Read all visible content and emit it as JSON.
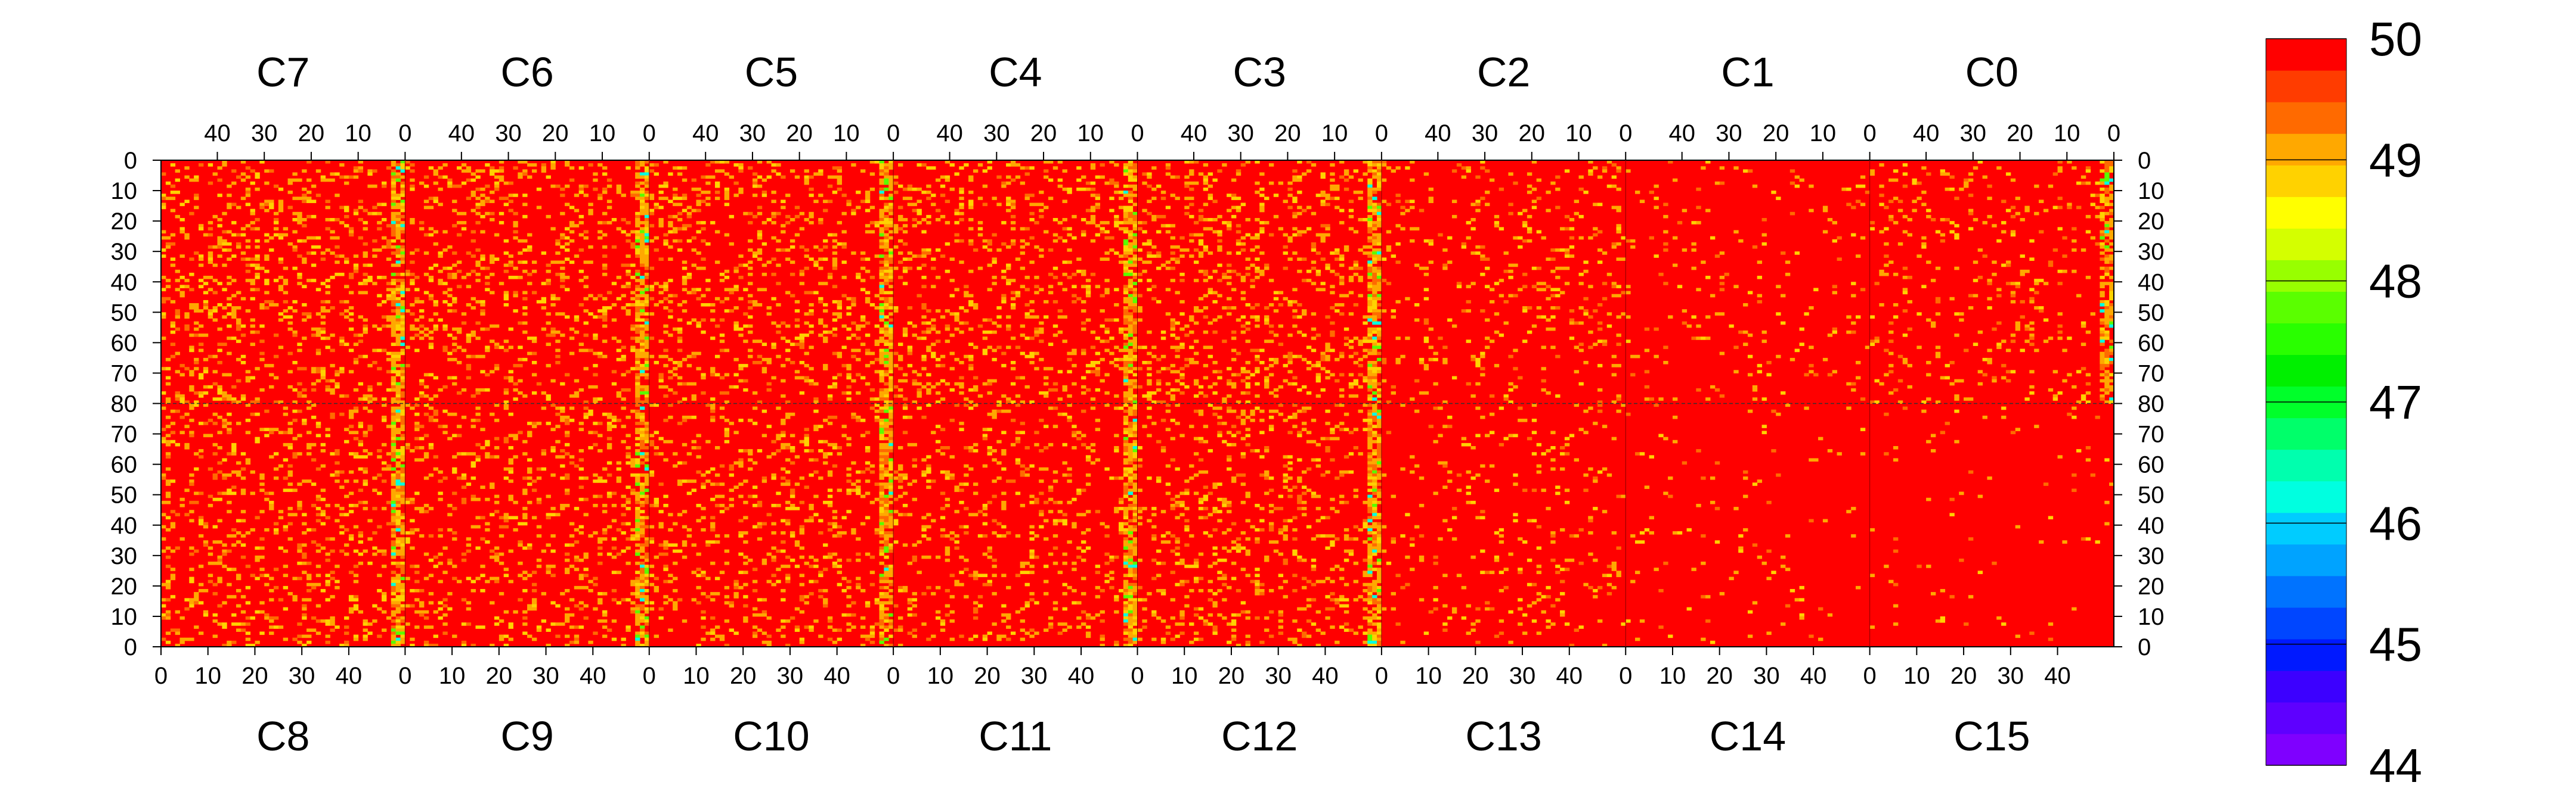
{
  "chart_data": {
    "type": "heatmap",
    "x_tick_labels": [
      "0",
      "10",
      "20",
      "30",
      "40"
    ],
    "y_tick_labels": [
      "0",
      "10",
      "20",
      "30",
      "40",
      "50",
      "60",
      "70",
      "80",
      "70",
      "60",
      "50",
      "40",
      "30",
      "20",
      "10",
      "0"
    ],
    "top_chips": [
      "C7",
      "C6",
      "C5",
      "C4",
      "C3",
      "C2",
      "C1",
      "C0"
    ],
    "bottom_chips": [
      "C8",
      "C9",
      "C10",
      "C11",
      "C12",
      "C13",
      "C14",
      "C15"
    ],
    "chip_columns": 52,
    "chip_rows": 80,
    "zlim": [
      44,
      50
    ],
    "colorbar": {
      "labels": [
        "50",
        "49",
        "48",
        "47",
        "46",
        "45",
        "44"
      ],
      "values": [
        50,
        49,
        48,
        47,
        46,
        45,
        44
      ],
      "colors": [
        "#7f00ff",
        "#5e00ff",
        "#3c00ff",
        "#0019ff",
        "#0046ff",
        "#0073ff",
        "#00a3ff",
        "#00ccff",
        "#00ffe0",
        "#00ffae",
        "#00ff6a",
        "#00ff2a",
        "#00f000",
        "#29ff00",
        "#5aff00",
        "#98ff00",
        "#d4ff00",
        "#ffff00",
        "#ffd200",
        "#ffa800",
        "#ff6a00",
        "#ff3c00",
        "#ff0000"
      ]
    },
    "base_color": "#ff0000",
    "background_level": 50,
    "chip_noise_fraction": [
      0.18,
      0.16,
      0.16,
      0.15,
      0.17,
      0.09,
      0.04,
      0.08,
      0.16,
      0.15,
      0.15,
      0.13,
      0.15,
      0.06,
      0.03,
      0.02
    ],
    "hot_edge_columns": "chip boundaries between C7/C6, C6/C5, C5/C4, C4/C3, C3/C2 and C0 right edge",
    "grid": false
  }
}
